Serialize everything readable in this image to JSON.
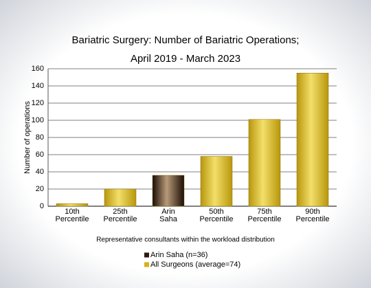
{
  "chart_data": {
    "type": "bar",
    "title": "Bariatric Surgery: Number of Bariatric Operations;",
    "subtitle": "April 2019 - March 2023",
    "x_label": "Representative consultants within the workload distribution",
    "y_label": "Number of operations",
    "categories": [
      "10th Percentile",
      "25th Percentile",
      "Arin Saha",
      "50th Percentile",
      "75th Percentile",
      "90th Percentile"
    ],
    "series": [
      {
        "name": "Arin Saha (n=36)",
        "color": "#2a1a10",
        "values": [
          null,
          null,
          36,
          null,
          null,
          null
        ]
      },
      {
        "name": "All Surgeons (average=74)",
        "color": "#d4b21a",
        "values": [
          3,
          20,
          null,
          58,
          101,
          155
        ]
      }
    ],
    "ylim": [
      0,
      160
    ],
    "yticks": [
      0,
      20,
      40,
      60,
      80,
      100,
      120,
      140,
      160
    ],
    "grid": true
  }
}
